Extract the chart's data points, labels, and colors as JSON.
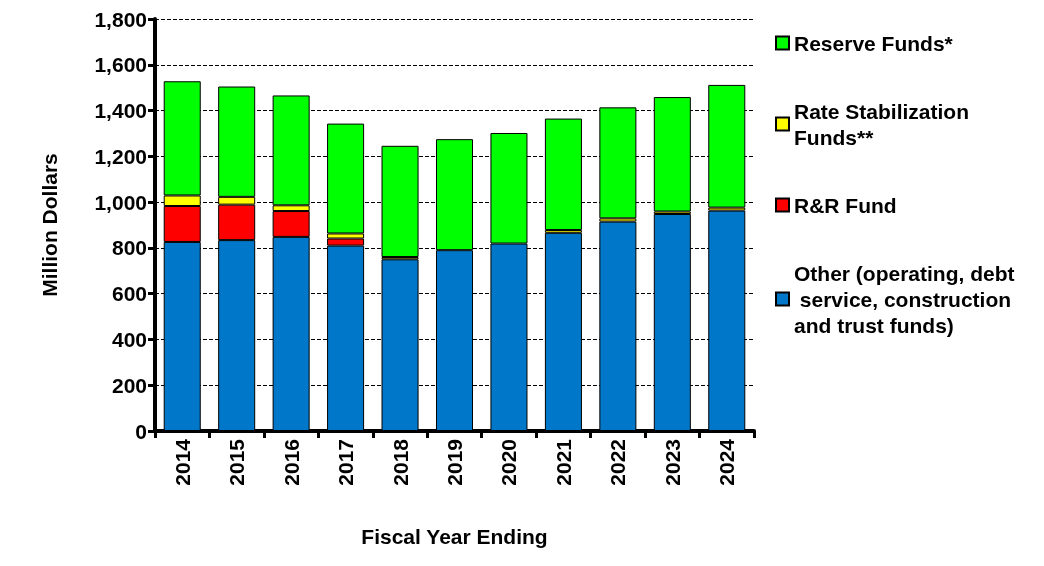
{
  "chart_data": {
    "type": "bar",
    "stacked": true,
    "xlabel": "Fiscal Year Ending",
    "ylabel": "Million Dollars",
    "categories": [
      "2014",
      "2015",
      "2016",
      "2017",
      "2018",
      "2019",
      "2020",
      "2021",
      "2022",
      "2023",
      "2024"
    ],
    "series": [
      {
        "name": "Other (operating, debt service, construction and trust funds)",
        "color": "#0077c8",
        "values": [
          826,
          834,
          848,
          810,
          750,
          790,
          819,
          866,
          915,
          948,
          963
        ]
      },
      {
        "name": "R&R Fund",
        "color": "#ff0000",
        "values": [
          157,
          155,
          113,
          31,
          null,
          null,
          null,
          null,
          null,
          null,
          null
        ]
      },
      {
        "name": "Rate Stabilization Funds**",
        "color": "#ffff00",
        "values": [
          46,
          34,
          25,
          22,
          10,
          null,
          null,
          12,
          14,
          11,
          13
        ]
      },
      {
        "name": "Reserve Funds*",
        "color": "#00ff00",
        "values": [
          499,
          482,
          480,
          480,
          486,
          485,
          483,
          487,
          485,
          500,
          536
        ]
      }
    ],
    "ylim": [
      0,
      1800
    ],
    "yticks": [
      0,
      200,
      400,
      600,
      800,
      {
        "value": 1000,
        "label": "1,000"
      },
      {
        "value": 1200,
        "label": "1,200"
      },
      {
        "value": 1400,
        "label": "1,400"
      },
      {
        "value": 1600,
        "label": "1,600"
      },
      {
        "value": 1800,
        "label": "1,800"
      }
    ],
    "grid": "y",
    "legend": "right"
  }
}
